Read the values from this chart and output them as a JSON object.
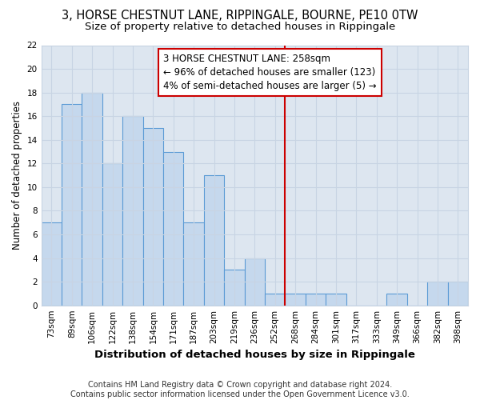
{
  "title1": "3, HORSE CHESTNUT LANE, RIPPINGALE, BOURNE, PE10 0TW",
  "title2": "Size of property relative to detached houses in Rippingale",
  "xlabel": "Distribution of detached houses by size in Rippingale",
  "ylabel": "Number of detached properties",
  "categories": [
    "73sqm",
    "89sqm",
    "106sqm",
    "122sqm",
    "138sqm",
    "154sqm",
    "171sqm",
    "187sqm",
    "203sqm",
    "219sqm",
    "236sqm",
    "252sqm",
    "268sqm",
    "284sqm",
    "301sqm",
    "317sqm",
    "333sqm",
    "349sqm",
    "366sqm",
    "382sqm",
    "398sqm"
  ],
  "values": [
    7,
    17,
    18,
    12,
    16,
    15,
    13,
    7,
    11,
    3,
    4,
    1,
    1,
    1,
    1,
    0,
    0,
    1,
    0,
    2,
    2
  ],
  "bar_color": "#c5d8ed",
  "bar_edge_color": "#5b9bd5",
  "grid_color": "#c8d4e3",
  "plot_bg_color": "#dde6f0",
  "fig_bg_color": "#ffffff",
  "vline_x": 11.5,
  "vline_color": "#cc0000",
  "annotation_text": "3 HORSE CHESTNUT LANE: 258sqm\n← 96% of detached houses are smaller (123)\n4% of semi-detached houses are larger (5) →",
  "annotation_box_color": "#cc0000",
  "ylim": [
    0,
    22
  ],
  "yticks": [
    0,
    2,
    4,
    6,
    8,
    10,
    12,
    14,
    16,
    18,
    20,
    22
  ],
  "footer": "Contains HM Land Registry data © Crown copyright and database right 2024.\nContains public sector information licensed under the Open Government Licence v3.0.",
  "title1_fontsize": 10.5,
  "title2_fontsize": 9.5,
  "xlabel_fontsize": 9.5,
  "ylabel_fontsize": 8.5,
  "tick_fontsize": 7.5,
  "annotation_fontsize": 8.5,
  "footer_fontsize": 7
}
